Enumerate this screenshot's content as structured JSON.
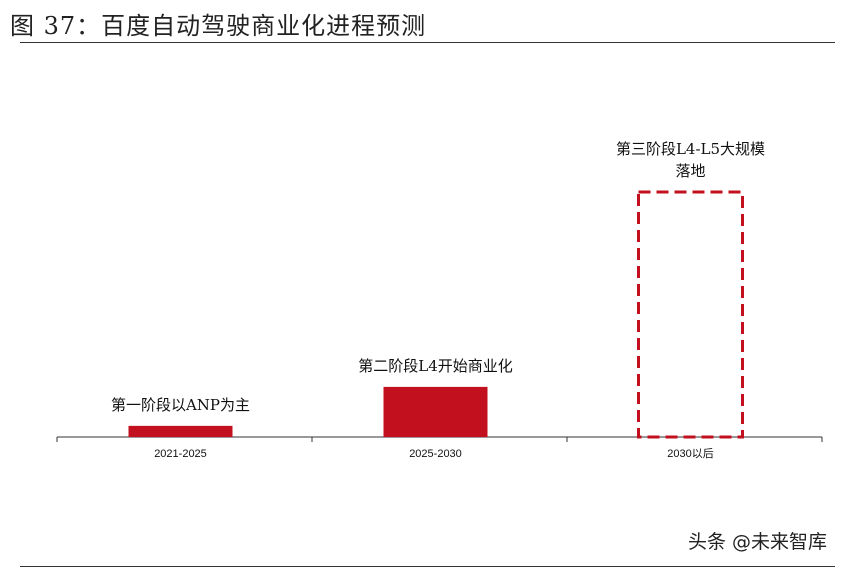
{
  "figure": {
    "title": "图 37：百度自动驾驶商业化进程预测"
  },
  "chart_data": {
    "type": "bar",
    "categories": [
      "2021-2025",
      "2025-2030",
      "2030以后"
    ],
    "values": [
      1,
      4.5,
      22
    ],
    "styles": [
      "solid",
      "solid",
      "dashed"
    ],
    "annotations": [
      [
        "第一阶段以ANP为主"
      ],
      [
        "第二阶段L4开始商业化"
      ],
      [
        "第三阶段L4-L5大规模",
        "落地"
      ]
    ],
    "title": "",
    "xlabel": "",
    "ylabel": "",
    "ylim": [
      0,
      22
    ],
    "grid": false,
    "color": "#c3101f"
  },
  "watermark": "头条 @未来智库"
}
